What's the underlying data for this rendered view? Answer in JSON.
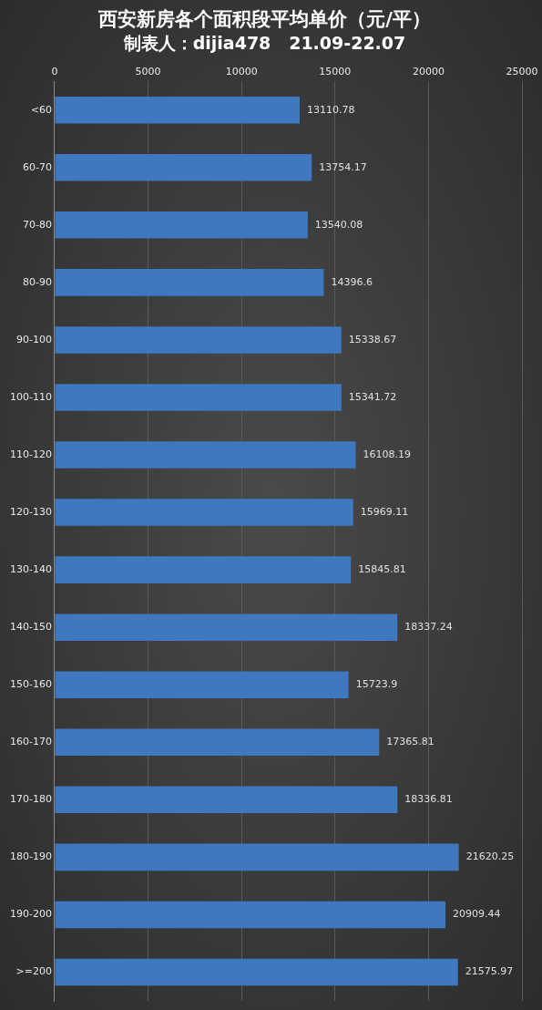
{
  "chart_data": {
    "type": "bar",
    "orientation": "horizontal",
    "title": "西安新房各个面积段平均单价（元/平）",
    "subtitle": "制表人：dijia478   21.09-22.07",
    "categories": [
      "<60",
      "60-70",
      "70-80",
      "80-90",
      "90-100",
      "100-110",
      "110-120",
      "120-130",
      "130-140",
      "140-150",
      "150-160",
      "160-170",
      "170-180",
      "180-190",
      "190-200",
      ">=200"
    ],
    "values": [
      13110.78,
      13754.17,
      13540.08,
      14396.6,
      15338.67,
      15341.72,
      16108.19,
      15969.11,
      15845.81,
      18337.24,
      15723.9,
      17365.81,
      18336.81,
      21620.25,
      20909.44,
      21575.97
    ],
    "color": "#3f78bf",
    "xlim": [
      0,
      25000
    ],
    "xticks": [
      0,
      5000,
      10000,
      15000,
      20000,
      25000
    ],
    "grid": "x",
    "data_labels": true
  }
}
